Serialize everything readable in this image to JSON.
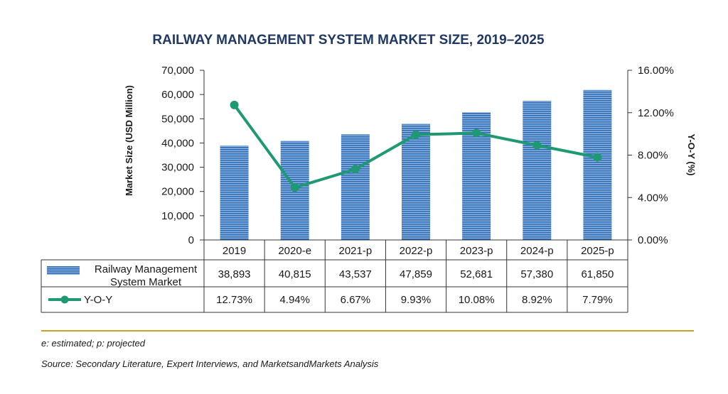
{
  "chart_data": {
    "type": "bar",
    "title": "RAILWAY MANAGEMENT SYSTEM MARKET SIZE, 2019–2025",
    "categories": [
      "2019",
      "2020-e",
      "2021-p",
      "2022-p",
      "2023-p",
      "2024-p",
      "2025-p"
    ],
    "ylabel": "Market Size (USD Million)",
    "ylim": [
      0,
      70000
    ],
    "yticks": [
      "0",
      "10,000",
      "20,000",
      "30,000",
      "40,000",
      "50,000",
      "60,000",
      "70,000"
    ],
    "y2label": "Y-O-Y (%)",
    "y2lim": [
      0,
      16
    ],
    "y2ticks": [
      "0.00%",
      "4.00%",
      "8.00%",
      "12.00%",
      "16.00%"
    ],
    "series": [
      {
        "name": "Railway Management System Market",
        "type": "bar",
        "axis": "left",
        "values": [
          38893,
          40815,
          43537,
          47859,
          52681,
          57380,
          61850
        ],
        "labels": [
          "38,893",
          "40,815",
          "43,537",
          "47,859",
          "52,681",
          "57,380",
          "61,850"
        ],
        "color": "#2e6db4"
      },
      {
        "name": "Y-O-Y",
        "type": "line",
        "axis": "right",
        "values": [
          12.73,
          4.94,
          6.67,
          9.93,
          10.08,
          8.92,
          7.79
        ],
        "labels": [
          "12.73%",
          "4.94%",
          "6.67%",
          "9.93%",
          "10.08%",
          "8.92%",
          "7.79%"
        ],
        "color": "#1f9874"
      }
    ],
    "legend": "data-table",
    "grid": false
  },
  "footnotes": {
    "note": "e: estimated; p: projected",
    "source": "Source: Secondary Literature, Expert Interviews, and MarketsandMarkets Analysis"
  },
  "colors": {
    "rule": "#c9a227",
    "title": "#1f3864"
  }
}
